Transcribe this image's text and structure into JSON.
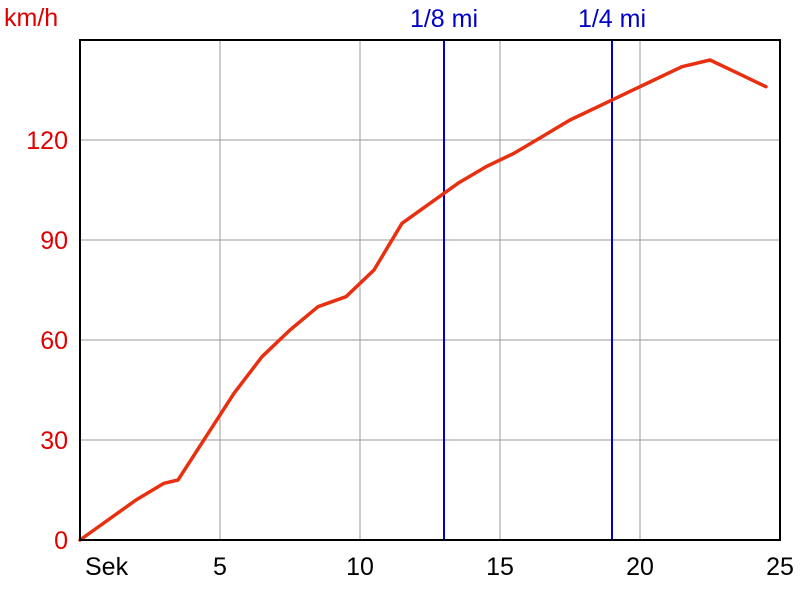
{
  "chart_data": {
    "type": "line",
    "ylabel": "km/h",
    "xlabel": "Sek",
    "xlim": [
      0,
      25
    ],
    "ylim": [
      0,
      150
    ],
    "grid": true,
    "x_ticks": [
      5,
      10,
      15,
      20,
      25
    ],
    "y_ticks": [
      0,
      30,
      60,
      90,
      120
    ],
    "series": [
      {
        "color": "#e83010",
        "x": [
          0,
          1,
          2,
          3,
          3.5,
          4.5,
          5.5,
          6.5,
          7.5,
          8.5,
          9.5,
          10.5,
          11.5,
          12.5,
          13.5,
          14.5,
          15.5,
          16.5,
          17.5,
          18.5,
          19.5,
          20.5,
          21.5,
          22.5,
          23.5,
          24.5
        ],
        "y": [
          0,
          6,
          12,
          17,
          18,
          31,
          44,
          55,
          63,
          70,
          73,
          81,
          95,
          101,
          107,
          112,
          116,
          121,
          126,
          130,
          134,
          138,
          142,
          144,
          140,
          136
        ]
      }
    ],
    "markers": [
      {
        "x": 13,
        "label": "1/8 mi"
      },
      {
        "x": 19,
        "label": "1/4 mi"
      }
    ],
    "colors": {
      "grid": "#999999",
      "axis": "#000000",
      "marker": "#0000c8",
      "y_text": "#e00000"
    }
  }
}
